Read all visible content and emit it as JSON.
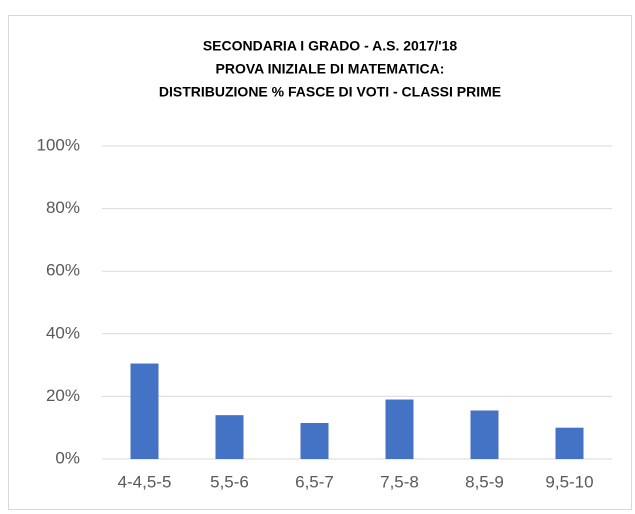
{
  "chart_data": {
    "type": "bar",
    "title": [
      "SECONDARIA I GRADO - A.S. 2017/'18",
      "PROVA INIZIALE DI MATEMATICA:",
      "DISTRIBUZIONE % FASCE DI VOTI - CLASSI PRIME"
    ],
    "categories": [
      "4-4,5-5",
      "5,5-6",
      "6,5-7",
      "7,5-8",
      "8,5-9",
      "9,5-10"
    ],
    "values": [
      30.5,
      14,
      11.5,
      19,
      15.5,
      10
    ],
    "color": "#4472c4",
    "ylim": [
      0,
      100
    ],
    "yticks": [
      {
        "value": 0,
        "label": "0%"
      },
      {
        "value": 20,
        "label": "20%"
      },
      {
        "value": 40,
        "label": "40%"
      },
      {
        "value": 60,
        "label": "60%"
      },
      {
        "value": 80,
        "label": "80%"
      },
      {
        "value": 100,
        "label": "100%"
      }
    ],
    "grid": true
  }
}
